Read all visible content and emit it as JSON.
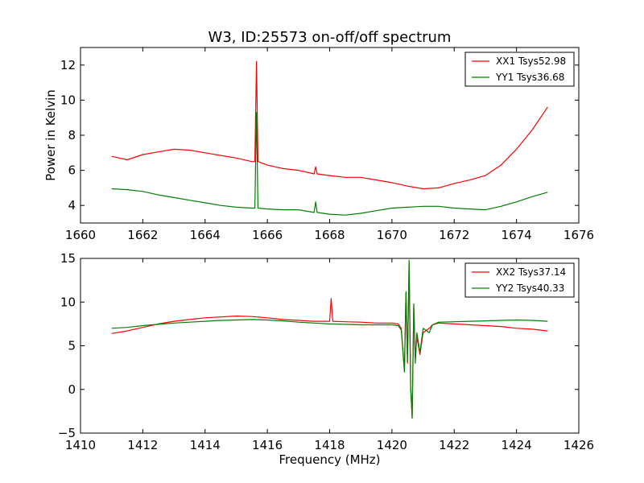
{
  "chart_data": [
    {
      "type": "line",
      "title": "W3, ID:25573 on-off/off spectrum",
      "xlabel": "",
      "ylabel": "Power in Kelvin",
      "xlim": [
        1660,
        1676
      ],
      "ylim": [
        3,
        13
      ],
      "xticks": [
        "1660",
        "1662",
        "1664",
        "1666",
        "1668",
        "1670",
        "1672",
        "1674",
        "1676"
      ],
      "yticks": [
        "4",
        "6",
        "8",
        "10",
        "12"
      ],
      "grid": false,
      "legend_position": "top-right",
      "series": [
        {
          "name": "XX1 Tsys52.98",
          "color": "#ff0000",
          "x": [
            1661.0,
            1661.5,
            1662.0,
            1662.5,
            1663.0,
            1663.5,
            1664.0,
            1664.5,
            1665.0,
            1665.5,
            1665.6,
            1665.65,
            1665.7,
            1666.0,
            1666.5,
            1667.0,
            1667.5,
            1667.55,
            1667.6,
            1668.0,
            1668.5,
            1669.0,
            1669.5,
            1670.0,
            1670.5,
            1671.0,
            1671.5,
            1672.0,
            1672.5,
            1673.0,
            1673.5,
            1674.0,
            1674.5,
            1675.0
          ],
          "y": [
            6.8,
            6.6,
            6.9,
            7.05,
            7.2,
            7.15,
            7.0,
            6.85,
            6.7,
            6.5,
            6.5,
            12.2,
            6.5,
            6.3,
            6.1,
            6.0,
            5.8,
            6.2,
            5.8,
            5.7,
            5.6,
            5.6,
            5.45,
            5.3,
            5.1,
            4.95,
            5.0,
            5.25,
            5.45,
            5.7,
            6.3,
            7.2,
            8.3,
            9.6
          ]
        },
        {
          "name": "YY1 Tsys36.68",
          "color": "#008000",
          "x": [
            1661.0,
            1661.5,
            1662.0,
            1662.5,
            1663.0,
            1663.5,
            1664.0,
            1664.5,
            1665.0,
            1665.5,
            1665.6,
            1665.65,
            1665.7,
            1666.0,
            1666.5,
            1667.0,
            1667.5,
            1667.55,
            1667.6,
            1668.0,
            1668.5,
            1669.0,
            1669.5,
            1670.0,
            1670.5,
            1671.0,
            1671.5,
            1672.0,
            1672.5,
            1673.0,
            1673.5,
            1674.0,
            1674.5,
            1675.0
          ],
          "y": [
            4.95,
            4.9,
            4.8,
            4.6,
            4.45,
            4.3,
            4.15,
            4.0,
            3.9,
            3.85,
            3.85,
            9.3,
            3.85,
            3.8,
            3.75,
            3.75,
            3.6,
            4.2,
            3.6,
            3.5,
            3.45,
            3.55,
            3.7,
            3.85,
            3.9,
            3.95,
            3.95,
            3.85,
            3.8,
            3.75,
            3.95,
            4.2,
            4.5,
            4.75
          ]
        }
      ]
    },
    {
      "type": "line",
      "title": "",
      "xlabel": "Frequency (MHz)",
      "ylabel": "",
      "xlim": [
        1410,
        1426
      ],
      "ylim": [
        -5,
        15
      ],
      "xticks": [
        "1410",
        "1412",
        "1414",
        "1416",
        "1418",
        "1420",
        "1422",
        "1424",
        "1426"
      ],
      "yticks": [
        "−5",
        "0",
        "5",
        "10",
        "15"
      ],
      "grid": false,
      "legend_position": "top-right",
      "series": [
        {
          "name": "XX2 Tsys37.14",
          "color": "#ff0000",
          "x": [
            1411.0,
            1411.5,
            1412.0,
            1412.5,
            1413.0,
            1413.5,
            1414.0,
            1414.5,
            1415.0,
            1415.5,
            1416.0,
            1416.5,
            1417.0,
            1417.5,
            1418.0,
            1418.05,
            1418.1,
            1418.5,
            1419.0,
            1419.5,
            1420.0,
            1420.2,
            1420.3,
            1420.4,
            1420.45,
            1420.5,
            1420.55,
            1420.6,
            1420.65,
            1420.7,
            1420.75,
            1420.8,
            1420.9,
            1421.0,
            1421.2,
            1421.3,
            1421.5,
            1422.0,
            1422.5,
            1423.0,
            1423.5,
            1424.0,
            1424.5,
            1425.0
          ],
          "y": [
            6.4,
            6.7,
            7.1,
            7.5,
            7.8,
            8.0,
            8.2,
            8.3,
            8.4,
            8.35,
            8.2,
            8.0,
            7.9,
            7.8,
            7.8,
            10.4,
            7.8,
            7.75,
            7.7,
            7.6,
            7.6,
            7.5,
            7.0,
            2.2,
            11.0,
            3.0,
            14.5,
            0.5,
            -3.2,
            9.5,
            3.5,
            6.0,
            4.0,
            6.5,
            7.0,
            7.4,
            7.6,
            7.5,
            7.4,
            7.3,
            7.2,
            7.0,
            6.9,
            6.7
          ]
        },
        {
          "name": "YY2 Tsys40.33",
          "color": "#008000",
          "x": [
            1411.0,
            1411.5,
            1412.0,
            1412.5,
            1413.0,
            1413.5,
            1414.0,
            1414.5,
            1415.0,
            1415.5,
            1416.0,
            1416.5,
            1417.0,
            1417.5,
            1418.0,
            1418.5,
            1419.0,
            1419.5,
            1420.0,
            1420.2,
            1420.3,
            1420.4,
            1420.45,
            1420.5,
            1420.55,
            1420.6,
            1420.65,
            1420.7,
            1420.75,
            1420.8,
            1420.9,
            1421.0,
            1421.2,
            1421.3,
            1421.5,
            1422.0,
            1422.5,
            1423.0,
            1423.5,
            1424.0,
            1424.5,
            1425.0
          ],
          "y": [
            7.0,
            7.1,
            7.3,
            7.45,
            7.6,
            7.7,
            7.8,
            7.9,
            7.95,
            8.0,
            7.95,
            7.85,
            7.7,
            7.6,
            7.5,
            7.45,
            7.4,
            7.4,
            7.4,
            7.3,
            6.8,
            2.0,
            11.2,
            3.2,
            14.8,
            0.3,
            -3.3,
            9.8,
            3.0,
            6.5,
            4.2,
            7.0,
            6.5,
            7.4,
            7.7,
            7.75,
            7.8,
            7.85,
            7.9,
            7.95,
            7.9,
            7.8
          ]
        }
      ]
    }
  ]
}
